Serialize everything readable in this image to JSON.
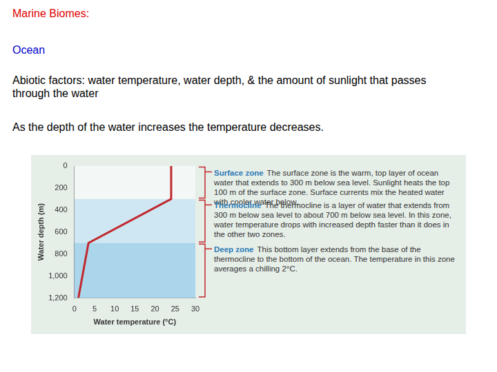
{
  "slide": {
    "title": "Marine Biomes:",
    "heading": "Ocean",
    "paragraphs": [
      "Abiotic factors: water temperature, water depth, & the amount of sunlight that passes through the water",
      "As the depth of the water increases the temperature decreases."
    ]
  },
  "chart_data": {
    "type": "line",
    "x_label": "Water temperature (°C)",
    "y_label": "Water depth (m)",
    "x": [
      24,
      24,
      3.5,
      1
    ],
    "values": [
      0,
      300,
      700,
      1200
    ],
    "color": "#c1272d",
    "xlim": [
      0,
      30
    ],
    "xticks": [
      0,
      5,
      10,
      15,
      20,
      25,
      30
    ],
    "ylim": [
      1200,
      0
    ],
    "yticks": [
      0,
      200,
      400,
      600,
      800,
      {
        "value": 1000,
        "label": "1,000"
      },
      {
        "value": 1200,
        "label": "1,200"
      }
    ],
    "grid": false,
    "zones": [
      {
        "name": "Surface zone",
        "from": 0,
        "to": 300,
        "text": "The surface zone is the warm, top layer of ocean water that extends to 300 m below sea level. Sunlight heats the top 100 m of the surface zone. Surface currents mix the heated water with cooler water below."
      },
      {
        "name": "Thermocline",
        "from": 300,
        "to": 700,
        "text": "The thermocline is a layer of water that extends from 300 m below sea level to about 700 m below sea level. In this zone, water temperature drops with increased depth faster than it does in the other two zones."
      },
      {
        "name": "Deep zone",
        "from": 700,
        "to": 1200,
        "text": "This bottom layer extends from the base of the thermocline to the bottom of the ocean. The temperature in this zone averages a chilling 2°C."
      }
    ]
  }
}
